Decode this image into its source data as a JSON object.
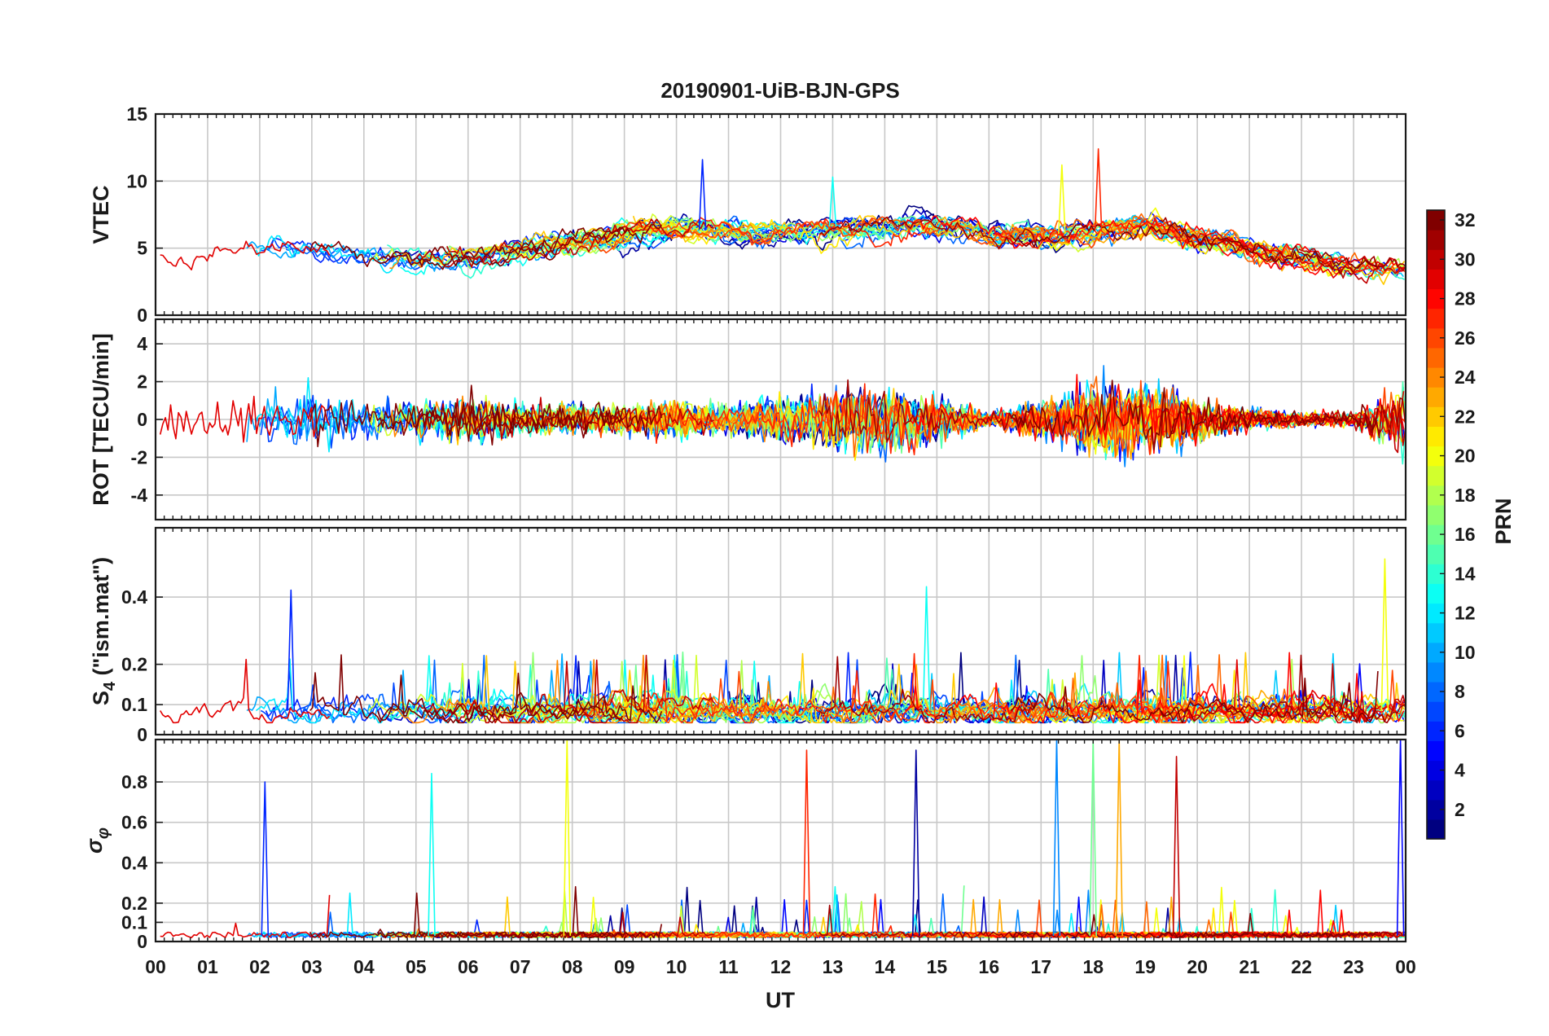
{
  "chart_data": {
    "type": "line",
    "title": "20190901-UiB-BJN-GPS",
    "xlabel": "UT",
    "x_ticks": [
      "00",
      "01",
      "02",
      "03",
      "04",
      "05",
      "06",
      "07",
      "08",
      "09",
      "10",
      "11",
      "12",
      "13",
      "14",
      "15",
      "16",
      "17",
      "18",
      "19",
      "20",
      "21",
      "22",
      "23",
      "00"
    ],
    "xlim_hours": [
      0,
      24
    ],
    "grid": true,
    "colorbar": {
      "label": "PRN",
      "colormap": "jet",
      "range": [
        1,
        32
      ],
      "ticks": [
        "2",
        "4",
        "6",
        "8",
        "10",
        "12",
        "14",
        "16",
        "18",
        "20",
        "22",
        "24",
        "26",
        "28",
        "30",
        "32"
      ]
    },
    "panels": [
      {
        "id": "vtec",
        "ylabel": "VTEC",
        "ylim": [
          0,
          15
        ],
        "yticks": [
          0,
          5,
          10,
          15
        ],
        "ytick_labels": [
          "0",
          "5",
          "10",
          "15"
        ],
        "baseline_by_hour": [
          4.0,
          4.8,
          5.2,
          4.8,
          4.2,
          4.1,
          4.6,
          5.0,
          5.6,
          6.3,
          6.5,
          6.2,
          6.2,
          6.6,
          6.8,
          6.6,
          6.0,
          5.9,
          6.3,
          6.8,
          5.5,
          4.8,
          4.0,
          3.6,
          3.4
        ],
        "notable_peaks": [
          {
            "x_hour": 10.5,
            "y": 11.6
          },
          {
            "x_hour": 13.0,
            "y": 10.3
          },
          {
            "x_hour": 17.4,
            "y": 11.2
          },
          {
            "x_hour": 18.1,
            "y": 12.4
          }
        ]
      },
      {
        "id": "rot",
        "ylabel": "ROT [TECU/min]",
        "ylim": [
          -5.3,
          5.3
        ],
        "yticks": [
          -4,
          -2,
          0,
          2,
          4
        ],
        "ytick_labels": [
          "-4",
          "-2",
          "0",
          "2",
          "4"
        ],
        "activity_by_hour": [
          0.6,
          0.9,
          0.8,
          1.1,
          0.7,
          0.8,
          0.9,
          0.6,
          0.6,
          0.5,
          0.7,
          0.6,
          0.9,
          1.2,
          1.3,
          0.9,
          0.3,
          0.7,
          1.4,
          1.5,
          0.8,
          0.4,
          0.3,
          0.3,
          1.5
        ]
      },
      {
        "id": "s4",
        "ylabel": "S",
        "ylabel_sub": "4",
        "ylabel_suffix": " (\"ism.mat\")",
        "ylim": [
          0,
          0.6
        ],
        "yticks": [
          0,
          0.1,
          0.2,
          0.4
        ],
        "ytick_labels": [
          "0",
          "0.1",
          "0.2",
          "0.4"
        ],
        "typical_range": [
          0.04,
          0.25
        ],
        "notable_peaks": [
          {
            "x_hour": 2.6,
            "y": 0.42
          },
          {
            "x_hour": 14.8,
            "y": 0.43
          },
          {
            "x_hour": 23.6,
            "y": 0.51
          }
        ]
      },
      {
        "id": "sigma_phi",
        "ylabel": "σ",
        "ylabel_sub": "φ",
        "ylim": [
          0,
          1
        ],
        "yticks": [
          0,
          0.1,
          0.2,
          0.4,
          0.6,
          0.8
        ],
        "ytick_labels": [
          "0",
          "0.1",
          "0.2",
          "0.4",
          "0.6",
          "0.8"
        ],
        "notable_peaks": [
          {
            "x_hour": 2.1,
            "y": 0.8
          },
          {
            "x_hour": 5.3,
            "y": 0.84
          },
          {
            "x_hour": 7.9,
            "y": 1.0
          },
          {
            "x_hour": 12.5,
            "y": 0.95
          },
          {
            "x_hour": 14.6,
            "y": 0.95
          },
          {
            "x_hour": 17.3,
            "y": 1.0
          },
          {
            "x_hour": 18.0,
            "y": 1.0
          },
          {
            "x_hour": 18.5,
            "y": 1.0
          },
          {
            "x_hour": 19.6,
            "y": 0.92
          },
          {
            "x_hour": 23.9,
            "y": 1.0
          }
        ]
      }
    ]
  }
}
